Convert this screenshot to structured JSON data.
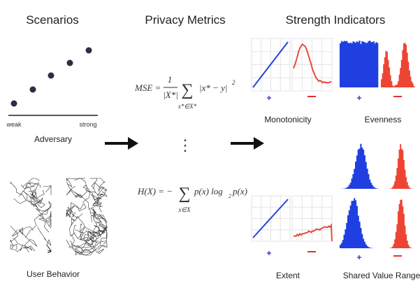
{
  "scenarios": {
    "title": "Scenarios",
    "weak": "weak",
    "strong": "strong",
    "adversary": "Adversary",
    "user_behavior": "User Behavior"
  },
  "metrics": {
    "title": "Privacy Metrics",
    "mse": {
      "lhs": "MSE =",
      "frac_num": "1",
      "frac_den": "|X*|",
      "sum": "∑",
      "sum_sub": "x*∈X*",
      "term": "|x* − y|",
      "exp": "2"
    },
    "ellipsis": "⋮",
    "entropy": {
      "lhs": "H(X) = −",
      "sum": "∑",
      "sum_sub": "x∈X",
      "term": "p(x) log",
      "log_base": "2",
      "term2": "p(x)"
    }
  },
  "indicators": {
    "title": "Strength Indicators",
    "monotonicity": "Monotonicity",
    "evenness": "Evenness",
    "extent": "Extent",
    "shared_value_range": "Shared Value Range"
  }
}
